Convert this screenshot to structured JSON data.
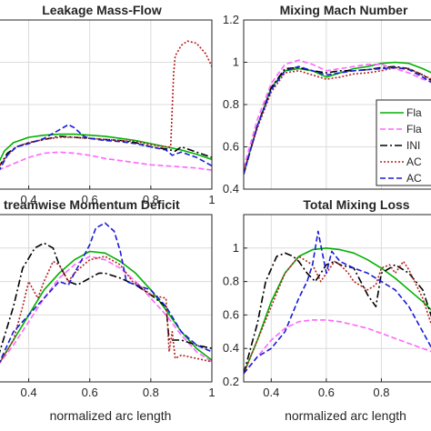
{
  "chart_data": [
    {
      "type": "line",
      "title": "Leakage Mass-Flow",
      "xlabel": "normalized arc length",
      "ylabel": "",
      "xlim": [
        0.3,
        1.0
      ],
      "ylim": [
        0.4,
        1.2
      ],
      "xticks": [
        "0.4",
        "0.6",
        "0.8",
        "1"
      ],
      "xtick_values": [
        0.4,
        0.6,
        0.8,
        1.0
      ],
      "yticks": [],
      "grid": true,
      "legend": false,
      "series": [
        {
          "x": [
            0.3,
            0.32,
            0.35,
            0.4,
            0.45,
            0.5,
            0.55,
            0.6,
            0.65,
            0.7,
            0.75,
            0.8,
            0.85,
            0.9,
            0.95,
            1.0
          ],
          "y": [
            0.52,
            0.58,
            0.62,
            0.645,
            0.655,
            0.66,
            0.66,
            0.655,
            0.65,
            0.64,
            0.63,
            0.615,
            0.6,
            0.585,
            0.565,
            0.54
          ]
        },
        {
          "x": [
            0.3,
            0.35,
            0.4,
            0.45,
            0.5,
            0.55,
            0.6,
            0.65,
            0.7,
            0.75,
            0.8,
            0.85,
            0.9,
            0.95,
            1.0
          ],
          "y": [
            0.49,
            0.52,
            0.55,
            0.57,
            0.575,
            0.57,
            0.56,
            0.545,
            0.535,
            0.525,
            0.515,
            0.51,
            0.505,
            0.5,
            0.49
          ]
        },
        {
          "x": [
            0.3,
            0.33,
            0.36,
            0.4,
            0.45,
            0.5,
            0.55,
            0.6,
            0.65,
            0.7,
            0.75,
            0.8,
            0.85,
            0.88,
            0.9,
            0.95,
            1.0
          ],
          "y": [
            0.5,
            0.57,
            0.6,
            0.62,
            0.635,
            0.65,
            0.645,
            0.64,
            0.635,
            0.63,
            0.62,
            0.6,
            0.59,
            0.58,
            0.6,
            0.575,
            0.55
          ]
        },
        {
          "x": [
            0.3,
            0.33,
            0.36,
            0.4,
            0.45,
            0.5,
            0.55,
            0.6,
            0.65,
            0.7,
            0.75,
            0.8,
            0.85,
            0.865,
            0.87,
            0.875,
            0.88,
            0.9,
            0.92,
            0.95,
            0.98,
            1.0
          ],
          "y": [
            0.5,
            0.56,
            0.6,
            0.62,
            0.635,
            0.645,
            0.645,
            0.64,
            0.635,
            0.63,
            0.625,
            0.61,
            0.6,
            0.6,
            0.78,
            0.95,
            1.03,
            1.08,
            1.1,
            1.09,
            1.04,
            0.98
          ]
        },
        {
          "x": [
            0.3,
            0.33,
            0.36,
            0.4,
            0.45,
            0.5,
            0.53,
            0.55,
            0.58,
            0.6,
            0.65,
            0.7,
            0.75,
            0.8,
            0.85,
            0.87,
            0.9,
            0.95,
            1.0
          ],
          "y": [
            0.48,
            0.56,
            0.6,
            0.615,
            0.64,
            0.68,
            0.705,
            0.69,
            0.65,
            0.64,
            0.63,
            0.625,
            0.615,
            0.6,
            0.585,
            0.56,
            0.575,
            0.55,
            0.51
          ]
        }
      ]
    },
    {
      "type": "line",
      "title": "Mixing Mach Number",
      "xlabel": "",
      "ylabel": "",
      "xlim": [
        0.3,
        1.0
      ],
      "ylim": [
        0.4,
        1.2
      ],
      "xticks": [],
      "yticks": [
        "0.4",
        "0.6",
        "0.8",
        "1",
        "1.2"
      ],
      "ytick_values": [
        0.4,
        0.6,
        0.8,
        1.0,
        1.2
      ],
      "grid": true,
      "legend": true,
      "legend_position": "right",
      "legend_entries": [
        "Fla",
        "Fla",
        "INI",
        "AC",
        "AC"
      ],
      "series": [
        {
          "x": [
            0.3,
            0.35,
            0.4,
            0.45,
            0.5,
            0.55,
            0.6,
            0.65,
            0.7,
            0.75,
            0.8,
            0.85,
            0.9,
            0.95,
            1.0
          ],
          "y": [
            0.48,
            0.7,
            0.88,
            0.96,
            0.97,
            0.96,
            0.93,
            0.95,
            0.97,
            0.98,
            0.995,
            1.0,
            0.995,
            0.97,
            0.94
          ]
        },
        {
          "x": [
            0.3,
            0.35,
            0.4,
            0.45,
            0.5,
            0.55,
            0.6,
            0.65,
            0.7,
            0.75,
            0.8,
            0.85,
            0.9,
            0.95,
            1.0
          ],
          "y": [
            0.5,
            0.73,
            0.9,
            0.99,
            1.01,
            0.99,
            0.96,
            0.97,
            0.98,
            0.99,
            0.99,
            0.97,
            0.95,
            0.92,
            0.9
          ]
        },
        {
          "x": [
            0.3,
            0.35,
            0.4,
            0.45,
            0.5,
            0.55,
            0.6,
            0.65,
            0.7,
            0.75,
            0.8,
            0.85,
            0.9,
            0.95,
            1.0
          ],
          "y": [
            0.47,
            0.7,
            0.88,
            0.97,
            0.975,
            0.96,
            0.95,
            0.96,
            0.96,
            0.965,
            0.975,
            0.98,
            0.97,
            0.94,
            0.9
          ]
        },
        {
          "x": [
            0.3,
            0.35,
            0.4,
            0.45,
            0.5,
            0.55,
            0.6,
            0.65,
            0.7,
            0.75,
            0.8,
            0.85,
            0.9,
            0.95,
            1.0
          ],
          "y": [
            0.48,
            0.69,
            0.86,
            0.95,
            0.96,
            0.94,
            0.92,
            0.93,
            0.945,
            0.95,
            0.96,
            0.975,
            0.97,
            0.94,
            0.91
          ]
        },
        {
          "x": [
            0.3,
            0.35,
            0.4,
            0.45,
            0.5,
            0.55,
            0.6,
            0.65,
            0.7,
            0.75,
            0.8,
            0.85,
            0.9,
            0.95,
            1.0
          ],
          "y": [
            0.47,
            0.7,
            0.87,
            0.96,
            0.98,
            0.96,
            0.94,
            0.95,
            0.96,
            0.965,
            0.97,
            0.975,
            0.965,
            0.93,
            0.89
          ]
        }
      ]
    },
    {
      "type": "line",
      "title": "treamwise Momentum Deficit",
      "xlabel": "normalized arc length",
      "ylabel": "",
      "xlim": [
        0.3,
        1.0
      ],
      "ylim": [
        0.2,
        1.2
      ],
      "xticks": [
        "0.4",
        "0.6",
        "0.8",
        "1"
      ],
      "xtick_values": [
        0.4,
        0.6,
        0.8,
        1.0
      ],
      "yticks": [],
      "grid": true,
      "legend": false,
      "series": [
        {
          "x": [
            0.3,
            0.35,
            0.4,
            0.45,
            0.5,
            0.55,
            0.6,
            0.65,
            0.7,
            0.75,
            0.8,
            0.85,
            0.9,
            0.95,
            1.0
          ],
          "y": [
            0.3,
            0.45,
            0.6,
            0.75,
            0.85,
            0.93,
            0.98,
            0.97,
            0.92,
            0.85,
            0.75,
            0.63,
            0.5,
            0.4,
            0.33
          ]
        },
        {
          "x": [
            0.3,
            0.35,
            0.4,
            0.45,
            0.5,
            0.55,
            0.6,
            0.65,
            0.7,
            0.75,
            0.8,
            0.85,
            0.9,
            0.95,
            1.0
          ],
          "y": [
            0.3,
            0.42,
            0.56,
            0.7,
            0.82,
            0.9,
            0.95,
            0.93,
            0.88,
            0.8,
            0.7,
            0.6,
            0.48,
            0.38,
            0.32
          ]
        },
        {
          "x": [
            0.3,
            0.35,
            0.38,
            0.42,
            0.45,
            0.48,
            0.5,
            0.53,
            0.56,
            0.6,
            0.63,
            0.65,
            0.7,
            0.75,
            0.8,
            0.85,
            0.86,
            0.88,
            0.9,
            0.95,
            1.0
          ],
          "y": [
            0.35,
            0.65,
            0.88,
            1.0,
            1.03,
            1.0,
            0.9,
            0.8,
            0.78,
            0.82,
            0.85,
            0.85,
            0.82,
            0.78,
            0.72,
            0.65,
            0.45,
            0.45,
            0.45,
            0.42,
            0.4
          ]
        },
        {
          "x": [
            0.3,
            0.35,
            0.38,
            0.4,
            0.43,
            0.45,
            0.48,
            0.5,
            0.53,
            0.55,
            0.58,
            0.6,
            0.65,
            0.7,
            0.72,
            0.74,
            0.76,
            0.8,
            0.85,
            0.86,
            0.87,
            0.88,
            0.9,
            0.95,
            1.0
          ],
          "y": [
            0.3,
            0.45,
            0.65,
            0.8,
            0.7,
            0.8,
            0.92,
            0.9,
            0.8,
            0.85,
            0.9,
            0.93,
            0.95,
            0.9,
            0.85,
            0.8,
            0.78,
            0.72,
            0.7,
            0.38,
            0.5,
            0.34,
            0.36,
            0.34,
            0.32
          ]
        },
        {
          "x": [
            0.3,
            0.35,
            0.4,
            0.45,
            0.5,
            0.53,
            0.55,
            0.58,
            0.6,
            0.62,
            0.65,
            0.68,
            0.7,
            0.72,
            0.75,
            0.8,
            0.85,
            0.9,
            0.95,
            1.0
          ],
          "y": [
            0.3,
            0.5,
            0.6,
            0.7,
            0.8,
            0.78,
            0.85,
            0.95,
            1.02,
            1.12,
            1.15,
            1.1,
            0.98,
            0.8,
            0.78,
            0.75,
            0.65,
            0.5,
            0.42,
            0.38
          ]
        }
      ]
    },
    {
      "type": "line",
      "title": "Total Mixing Loss",
      "xlabel": "normalized arc length",
      "ylabel": "",
      "xlim": [
        0.3,
        1.0
      ],
      "ylim": [
        0.2,
        1.2
      ],
      "xticks": [
        "0.4",
        "0.6",
        "0.8",
        "1"
      ],
      "xtick_values": [
        0.4,
        0.6,
        0.8,
        1.0
      ],
      "yticks": [
        "0.2",
        "0.4",
        "0.6",
        "0.8",
        "1"
      ],
      "ytick_values": [
        0.2,
        0.4,
        0.6,
        0.8,
        1.0
      ],
      "grid": true,
      "legend": false,
      "series": [
        {
          "x": [
            0.3,
            0.35,
            0.4,
            0.45,
            0.5,
            0.55,
            0.6,
            0.65,
            0.7,
            0.75,
            0.8,
            0.85,
            0.9,
            0.95,
            1.0
          ],
          "y": [
            0.25,
            0.45,
            0.68,
            0.85,
            0.95,
            0.99,
            1.0,
            0.99,
            0.97,
            0.93,
            0.88,
            0.82,
            0.75,
            0.68,
            0.6
          ]
        },
        {
          "x": [
            0.3,
            0.35,
            0.4,
            0.45,
            0.5,
            0.55,
            0.6,
            0.65,
            0.7,
            0.75,
            0.8,
            0.85,
            0.9,
            0.95,
            1.0
          ],
          "y": [
            0.25,
            0.35,
            0.45,
            0.52,
            0.56,
            0.57,
            0.57,
            0.56,
            0.54,
            0.52,
            0.49,
            0.46,
            0.43,
            0.4,
            0.37
          ]
        },
        {
          "x": [
            0.3,
            0.35,
            0.38,
            0.42,
            0.45,
            0.48,
            0.5,
            0.53,
            0.56,
            0.6,
            0.63,
            0.65,
            0.7,
            0.75,
            0.78,
            0.8,
            0.85,
            0.9,
            0.95,
            1.0
          ],
          "y": [
            0.25,
            0.55,
            0.8,
            0.95,
            0.97,
            0.95,
            0.92,
            0.85,
            0.8,
            0.9,
            0.92,
            0.9,
            0.88,
            0.72,
            0.65,
            0.85,
            0.9,
            0.85,
            0.75,
            0.5
          ]
        },
        {
          "x": [
            0.3,
            0.35,
            0.4,
            0.45,
            0.5,
            0.53,
            0.55,
            0.58,
            0.6,
            0.63,
            0.65,
            0.68,
            0.7,
            0.75,
            0.78,
            0.8,
            0.83,
            0.85,
            0.88,
            0.9,
            0.95,
            1.0
          ],
          "y": [
            0.25,
            0.45,
            0.65,
            0.85,
            0.95,
            0.92,
            0.9,
            0.8,
            0.85,
            0.92,
            0.9,
            0.85,
            0.8,
            0.75,
            0.78,
            0.88,
            0.9,
            0.85,
            0.92,
            0.87,
            0.7,
            0.45
          ]
        },
        {
          "x": [
            0.3,
            0.35,
            0.4,
            0.45,
            0.5,
            0.53,
            0.55,
            0.57,
            0.6,
            0.62,
            0.65,
            0.7,
            0.75,
            0.8,
            0.85,
            0.9,
            0.95,
            1.0
          ],
          "y": [
            0.25,
            0.35,
            0.4,
            0.5,
            0.7,
            0.8,
            0.9,
            1.1,
            0.85,
            0.98,
            0.92,
            0.88,
            0.85,
            0.8,
            0.75,
            0.65,
            0.5,
            0.35
          ]
        }
      ]
    }
  ],
  "colors": [
    "#00b000",
    "#ff66ff",
    "#000000",
    "#b22222",
    "#1a1ad6"
  ],
  "dashes": [
    "",
    "6,3",
    "8,3,2,3",
    "2,2",
    "6,3"
  ]
}
